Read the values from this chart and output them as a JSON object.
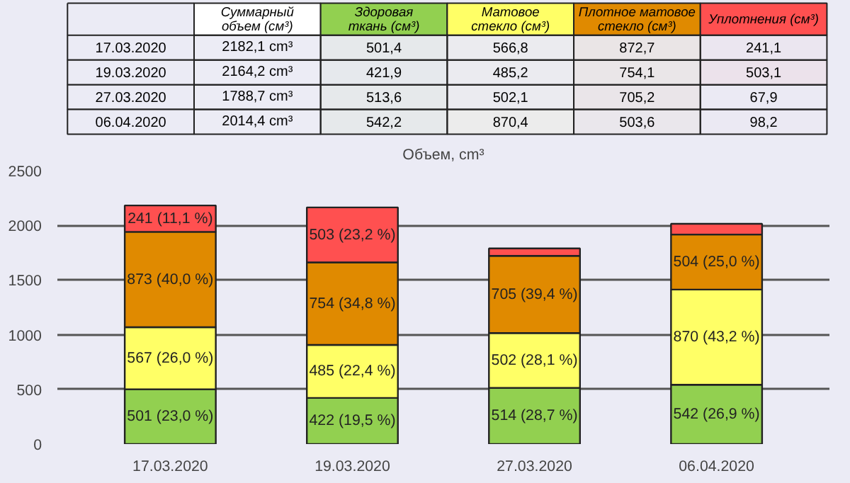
{
  "chart_data": [
    {
      "type": "heatmap",
      "categories": [
        "Суммарный объем (см³)",
        "Здоровая ткань (см³)",
        "Матовое стекло (см³)",
        "Плотное матовое стекло (см³)",
        "Уплотнения (см³)"
      ],
      "colors": [
        "#ffffff",
        "#92d050",
        "#ffff66",
        "#e08a00",
        "#ff5050"
      ],
      "y_categories": [
        "17.03.2020",
        "19.03.2020",
        "27.03.2020",
        "06.04.2020"
      ],
      "cells": [
        [
          2182.1,
          501.4,
          566.8,
          872.7,
          241.1
        ],
        [
          2164.2,
          421.9,
          485.2,
          754.1,
          503.1
        ],
        [
          1788.7,
          513.6,
          502.1,
          705.2,
          67.9
        ],
        [
          2014.4,
          542.2,
          870.4,
          503.6,
          98.2
        ]
      ],
      "cell_labels": [
        [
          "2182,1 cm³",
          "501,4",
          "566,8",
          "872,7",
          "241,1"
        ],
        [
          "2164,2 cm³",
          "421,9",
          "485,2",
          "754,1",
          "503,1"
        ],
        [
          "1788,7 cm³",
          "513,6",
          "502,1",
          "705,2",
          "67,9"
        ],
        [
          "2014,4 cm³",
          "542,2",
          "870,4",
          "503,6",
          "98,2"
        ]
      ]
    },
    {
      "type": "bar",
      "title": "Объем, cm³",
      "stacked": true,
      "categories": [
        "17.03.2020",
        "19.03.2020",
        "27.03.2020",
        "06.04.2020"
      ],
      "series": [
        {
          "color": "#92d050",
          "values": [
            501.4,
            421.9,
            513.6,
            542.2
          ],
          "value_labels": [
            "501 (23,0 %)",
            "422 (19,5 %)",
            "514 (28,7 %)",
            "542 (26,9 %)"
          ]
        },
        {
          "color": "#ffff66",
          "values": [
            566.8,
            485.2,
            502.1,
            870.4
          ],
          "value_labels": [
            "567 (26,0 %)",
            "485 (22,4 %)",
            "502 (28,1 %)",
            "870 (43,2 %)"
          ]
        },
        {
          "color": "#e08a00",
          "values": [
            872.7,
            754.1,
            705.2,
            503.6
          ],
          "value_labels": [
            "873 (40,0 %)",
            "754 (34,8 %)",
            "705 (39,4 %)",
            "504 (25,0 %)"
          ]
        },
        {
          "color": "#ff5050",
          "values": [
            241.1,
            503.1,
            67.9,
            98.2
          ],
          "value_labels": [
            "241 (11,1 %)",
            "503 (23,2 %)",
            null,
            null
          ]
        }
      ],
      "ylim": [
        0,
        2500
      ],
      "yticks": [
        0,
        500,
        1000,
        1500,
        2000,
        2500
      ],
      "grid": "y"
    }
  ]
}
